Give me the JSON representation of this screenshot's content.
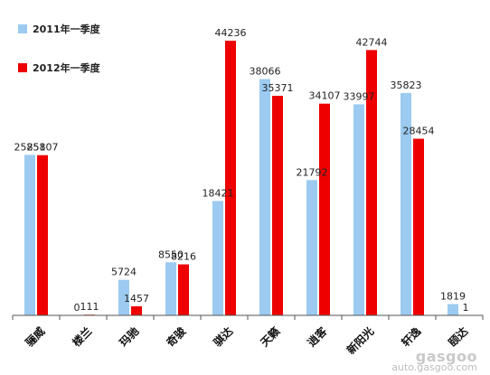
{
  "chart_data": {
    "type": "bar",
    "categories": [
      "骊威",
      "楼兰",
      "玛驰",
      "奇骏",
      "骐达",
      "天籁",
      "逍客",
      "新阳光",
      "轩逸",
      "颐达"
    ],
    "series": [
      {
        "name": "2011年一季度",
        "color": "#9ccaf0",
        "values": [
          25851,
          0,
          5724,
          8550,
          18421,
          38066,
          21792,
          33997,
          35823,
          1819
        ]
      },
      {
        "name": "2012年一季度",
        "color": "#ee0000",
        "values": [
          25807,
          111,
          1457,
          8216,
          44236,
          35371,
          34107,
          42744,
          28454,
          1
        ]
      }
    ],
    "ylim": [
      0,
      46000
    ],
    "grid": false,
    "legend": "top-left"
  },
  "watermark": {
    "logo": "gasgoo",
    "url": "auto.gasgoo.com"
  }
}
